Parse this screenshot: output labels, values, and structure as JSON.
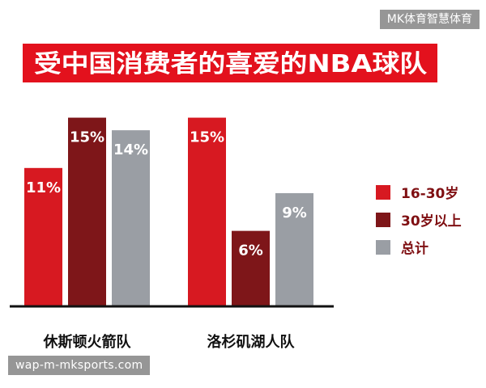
{
  "watermark_top": "MK体育智慧体育",
  "watermark_bottom": "wap-m-mksports.com",
  "colors": {
    "title_bg": "#e3111d",
    "title_text": "#ffffff",
    "label_text": "#ffffff",
    "category_text": "#111111",
    "legend_text": "#7f0f12",
    "axis": "#111111"
  },
  "chart_data": {
    "type": "bar",
    "title": "受中国消费者的喜爱的NBA球队",
    "categories": [
      "休斯顿火箭队",
      "洛杉矶湖人队"
    ],
    "series": [
      {
        "name": "16-30岁",
        "color": "#d71921",
        "values": [
          11,
          15
        ],
        "labels": [
          "11%",
          "15%"
        ]
      },
      {
        "name": "30岁以上",
        "color": "#7e1619",
        "values": [
          15,
          6
        ],
        "labels": [
          "15%",
          "6%"
        ]
      },
      {
        "name": "总计",
        "color": "#9a9ea4",
        "values": [
          14,
          9
        ],
        "labels": [
          "14%",
          "9%"
        ]
      }
    ],
    "unit": "%",
    "ylim": [
      0,
      16
    ],
    "grid": false,
    "legend": "right"
  }
}
